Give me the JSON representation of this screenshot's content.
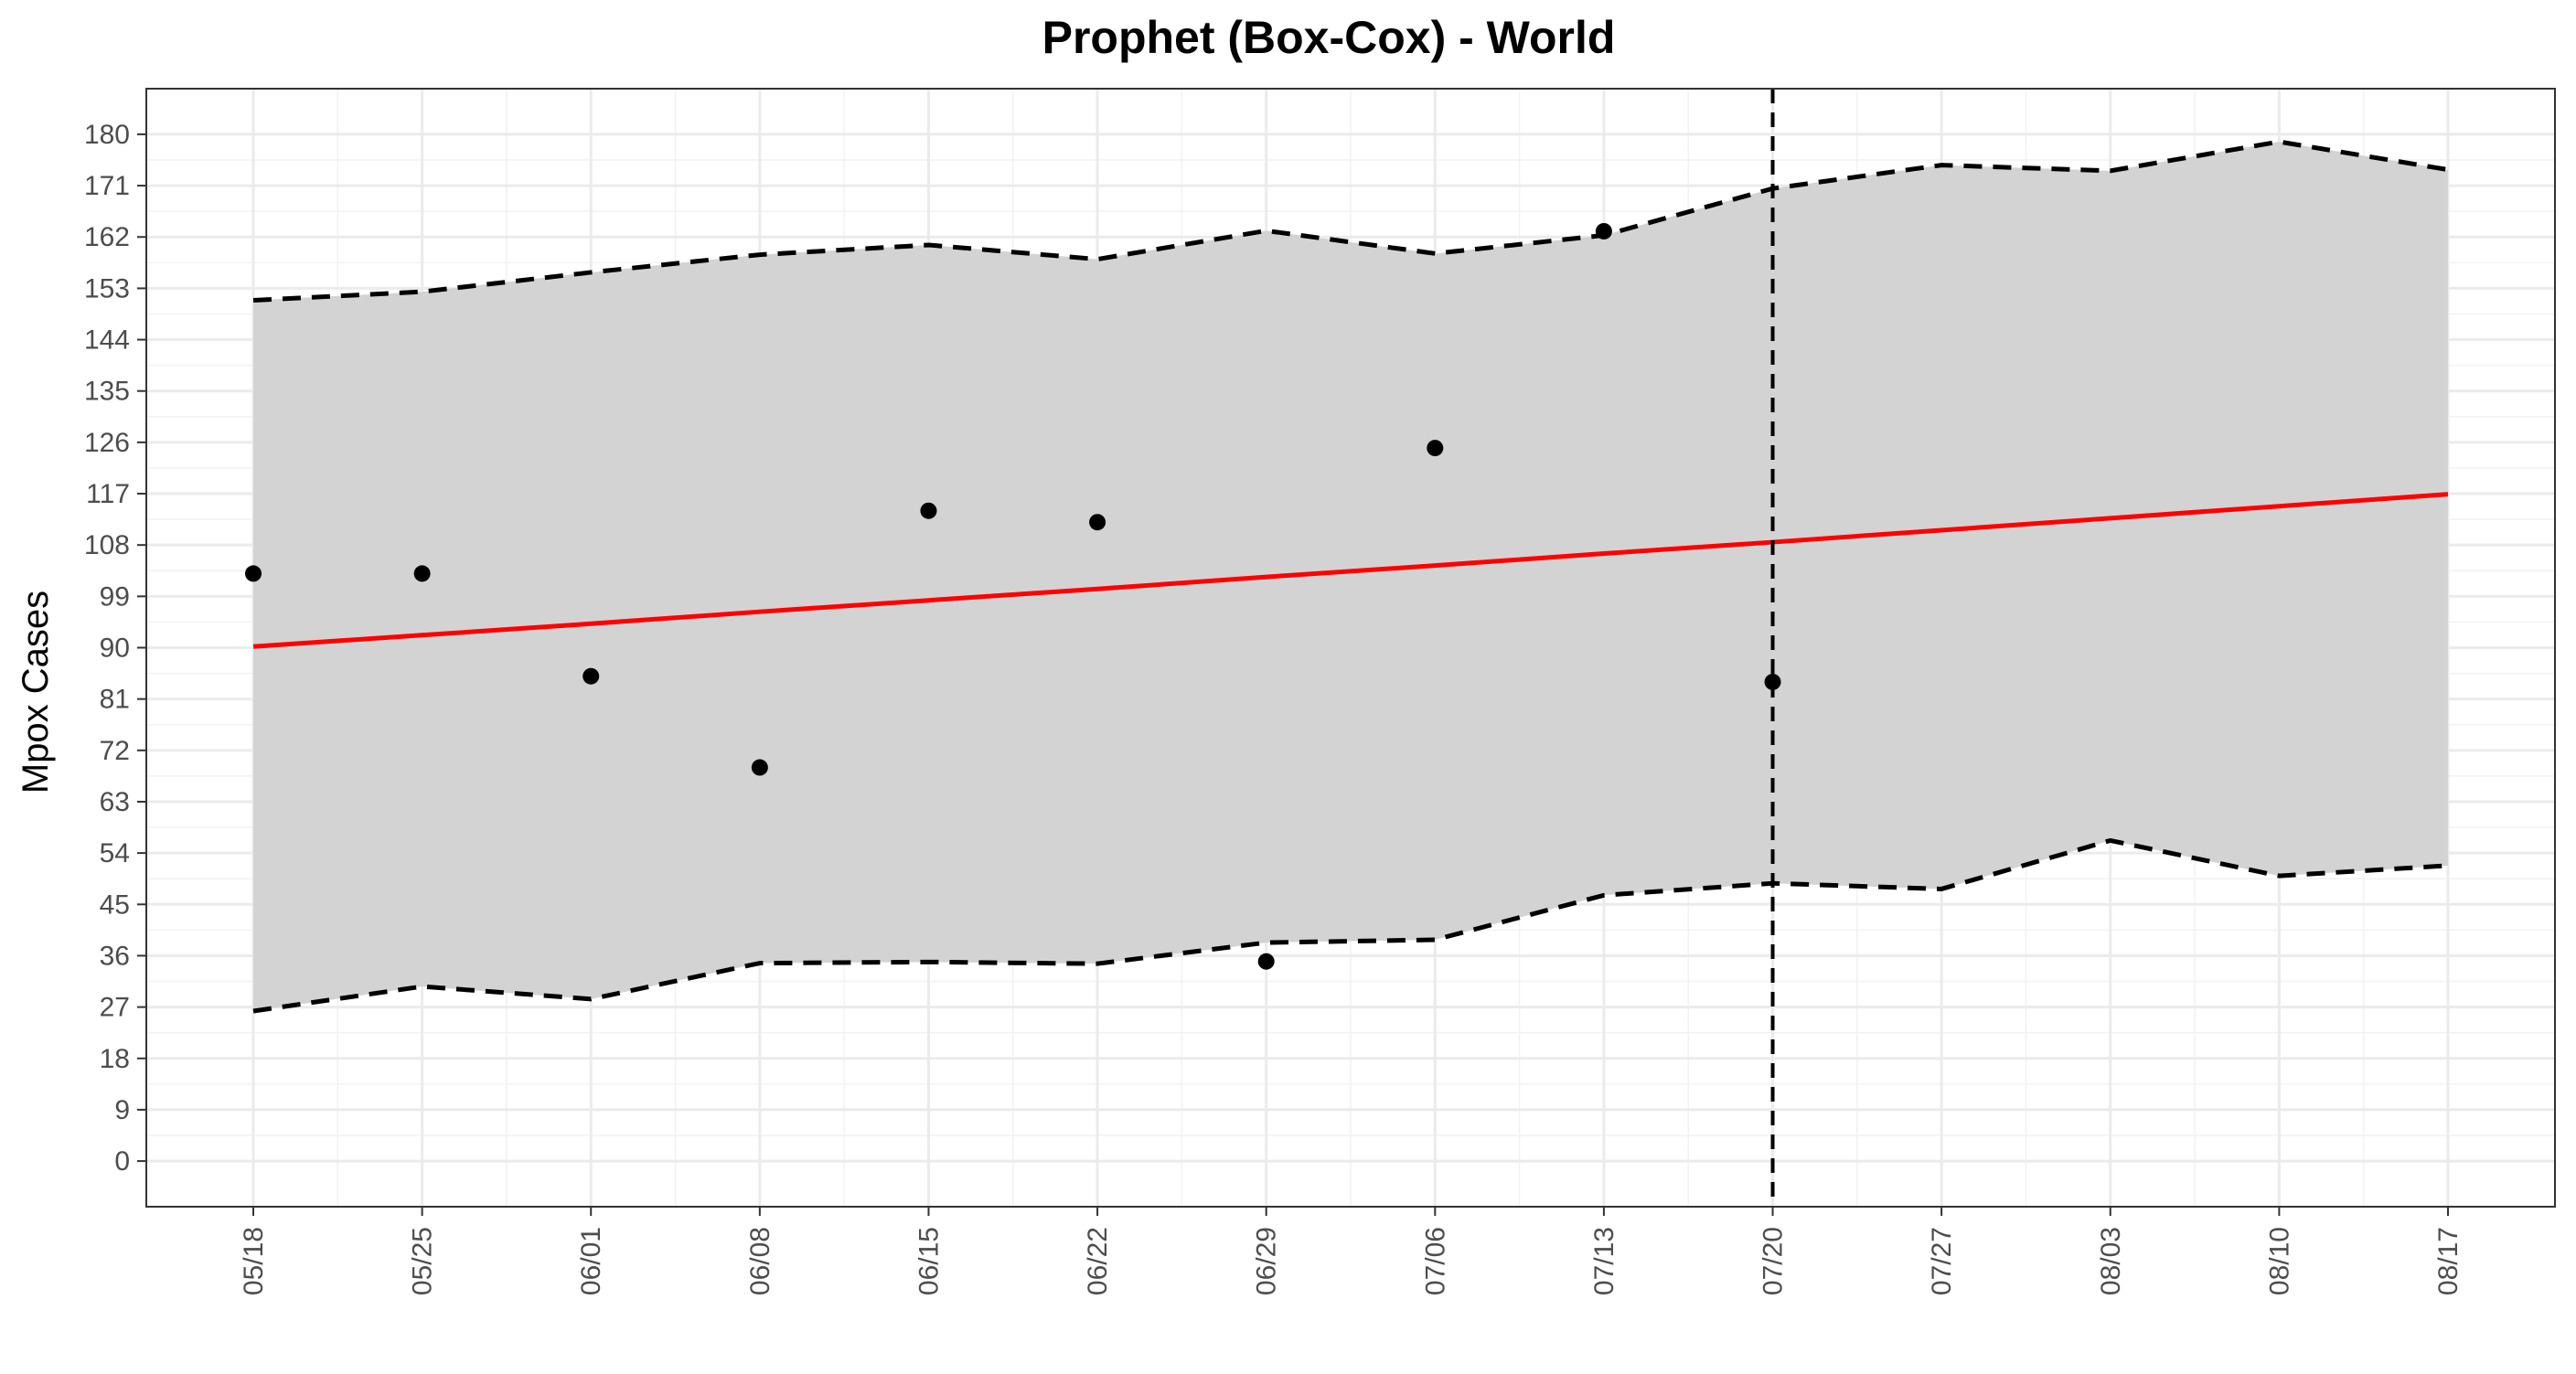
{
  "chart_data": {
    "type": "line",
    "title": "Prophet (Box-Cox) - World",
    "xlabel": "",
    "ylabel": "Mpox Cases",
    "x_tick_labels": [
      "05/18",
      "05/25",
      "06/01",
      "06/08",
      "06/15",
      "06/22",
      "06/29",
      "07/06",
      "07/13",
      "07/20",
      "07/27",
      "08/03",
      "08/10",
      "08/17"
    ],
    "y_ticks": [
      0,
      9,
      18,
      27,
      36,
      45,
      54,
      63,
      72,
      81,
      90,
      99,
      108,
      117,
      126,
      135,
      144,
      153,
      162,
      171,
      180
    ],
    "ylim": [
      -8,
      188
    ],
    "grid": true,
    "forecast_start": "07/20",
    "series": [
      {
        "x": [
          "05/18",
          "05/25",
          "06/01",
          "06/08",
          "06/15",
          "06/22",
          "06/29",
          "07/06",
          "07/13",
          "07/20",
          "07/27",
          "08/03",
          "08/10",
          "08/17"
        ],
        "values": [
          90.2,
          92.2,
          94.2,
          96.3,
          98.3,
          100.3,
          102.4,
          104.4,
          106.5,
          108.5,
          110.6,
          112.7,
          114.8,
          116.9
        ],
        "color": "#ff0000",
        "style": "solid"
      },
      {
        "x": [
          "05/18",
          "05/25",
          "06/01",
          "06/08",
          "06/15",
          "06/22",
          "06/29",
          "07/06",
          "07/13",
          "07/20",
          "07/27",
          "08/03",
          "08/10",
          "08/17"
        ],
        "values": [
          150.9,
          152.4,
          155.8,
          158.9,
          160.6,
          158.1,
          163.1,
          159.1,
          162.3,
          170.5,
          174.6,
          173.6,
          178.7,
          173.8
        ],
        "color": "#000000",
        "style": "dashed"
      },
      {
        "x": [
          "05/18",
          "05/25",
          "06/01",
          "06/08",
          "06/15",
          "06/22",
          "06/29",
          "07/06",
          "07/13",
          "07/20",
          "07/27",
          "08/03",
          "08/10",
          "08/17"
        ],
        "values": [
          26.3,
          30.6,
          28.4,
          34.7,
          34.9,
          34.6,
          38.3,
          38.8,
          46.6,
          48.7,
          47.7,
          56.2,
          50.0,
          51.8
        ],
        "color": "#000000",
        "style": "dashed"
      },
      {
        "type": "scatter",
        "x": [
          "05/18",
          "05/25",
          "06/01",
          "06/08",
          "06/15",
          "06/22",
          "06/29",
          "07/06",
          "07/13",
          "07/20"
        ],
        "values": [
          103,
          103,
          85,
          69,
          114,
          112,
          35,
          125,
          163,
          84
        ],
        "color": "#000000"
      }
    ],
    "band_fill": "#d3d3d3"
  }
}
